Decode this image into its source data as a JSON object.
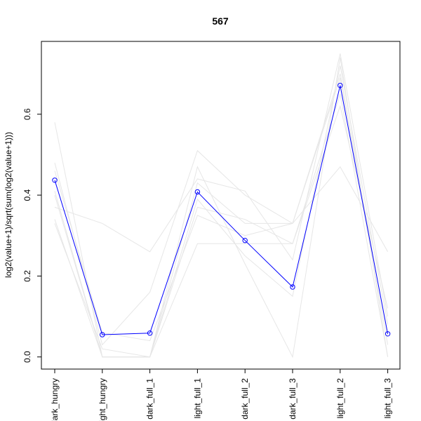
{
  "chart_data": {
    "type": "line",
    "title": "567",
    "xlabel": "",
    "ylabel": "log2(value+1)/sqrt(sum(log2(value+1)))",
    "categories": [
      "dark_hungry",
      "light_hungry",
      "dark_full_1",
      "light_full_1",
      "dark_full_2",
      "dark_full_3",
      "light_full_2",
      "light_full_3"
    ],
    "ylim": [
      -0.03,
      0.78
    ],
    "yticks": [
      0.0,
      0.2,
      0.4,
      0.6
    ],
    "ytick_labels": [
      "0.0",
      "0.2",
      "0.4",
      "0.6"
    ],
    "grid": false,
    "legend": "none",
    "highlight_series": {
      "color": "#0000ff",
      "marker": "open-circle",
      "values": [
        0.437,
        0.055,
        0.059,
        0.408,
        0.288,
        0.173,
        0.671,
        0.057
      ]
    },
    "background_series": [
      {
        "values": [
          0.58,
          0.0,
          0.0,
          0.47,
          0.23,
          0.0,
          0.74,
          0.0
        ]
      },
      {
        "values": [
          0.48,
          0.03,
          0.16,
          0.51,
          0.4,
          0.33,
          0.47,
          0.26
        ]
      },
      {
        "values": [
          0.37,
          0.33,
          0.26,
          0.44,
          0.41,
          0.24,
          0.75,
          0.1
        ]
      },
      {
        "values": [
          0.34,
          0.0,
          0.0,
          0.28,
          0.28,
          0.28,
          0.65,
          0.0
        ]
      },
      {
        "values": [
          0.46,
          0.06,
          0.04,
          0.35,
          0.3,
          0.33,
          0.7,
          0.05
        ]
      },
      {
        "values": [
          0.33,
          0.02,
          0.0,
          0.43,
          0.33,
          0.33,
          0.69,
          0.03
        ]
      },
      {
        "values": [
          0.41,
          0.0,
          0.0,
          0.39,
          0.25,
          0.15,
          0.72,
          0.08
        ]
      },
      {
        "values": [
          0.4,
          0.0,
          0.0,
          0.37,
          0.34,
          0.28,
          0.62,
          0.12
        ]
      }
    ],
    "colors": {
      "highlight": "#0000ff",
      "background": "#e6e6e6",
      "frame": "#000000"
    }
  }
}
